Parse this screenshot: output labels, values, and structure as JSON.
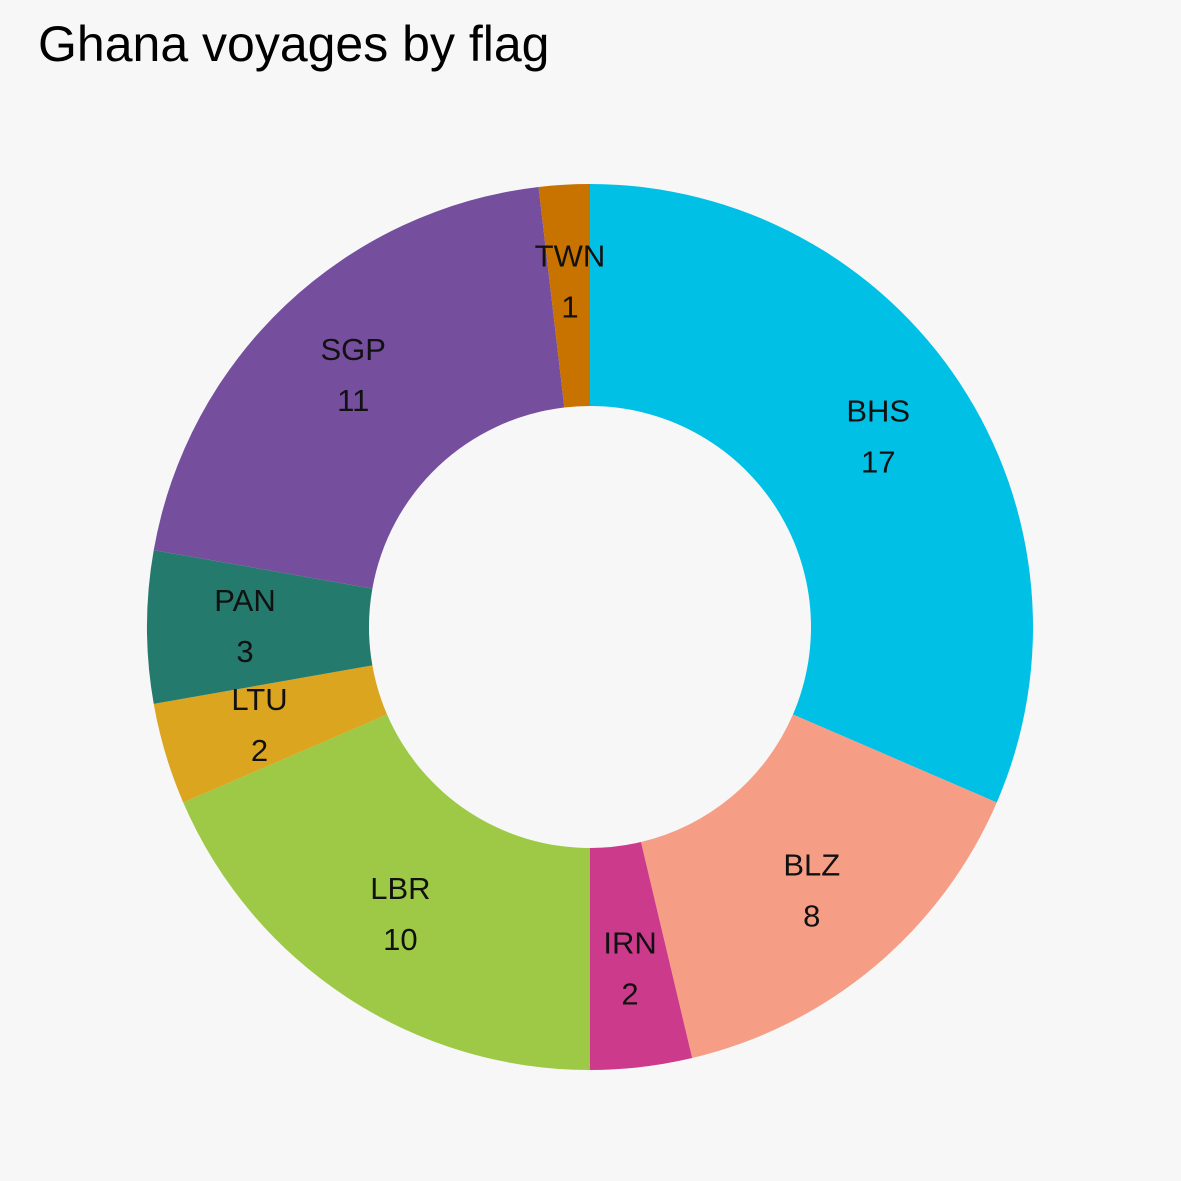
{
  "chart_data": {
    "type": "pie",
    "variant": "donut",
    "title": "Ghana voyages by flag",
    "direction": "clockwise",
    "start": "top",
    "slices": [
      {
        "label": "BHS",
        "value": 17,
        "color": "#00c0e6"
      },
      {
        "label": "BLZ",
        "value": 8,
        "color": "#f59e85"
      },
      {
        "label": "IRN",
        "value": 2,
        "color": "#cc3a8c"
      },
      {
        "label": "LBR",
        "value": 10,
        "color": "#9dc946"
      },
      {
        "label": "LTU",
        "value": 2,
        "color": "#dba520"
      },
      {
        "label": "PAN",
        "value": 3,
        "color": "#247a6c"
      },
      {
        "label": "SGP",
        "value": 11,
        "color": "#764e9e"
      },
      {
        "label": "TWN",
        "value": 1,
        "color": "#c87200"
      }
    ]
  }
}
